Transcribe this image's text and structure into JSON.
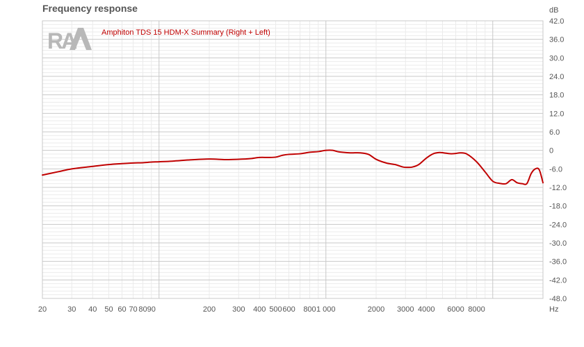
{
  "title": "Frequency response",
  "logo_text": "RA",
  "colors": {
    "series": "#c00000",
    "grid_major": "#c8c8c8",
    "grid_minor": "#ebebeb",
    "text": "#555555",
    "logo": "#b8b8b8"
  },
  "chart_data": {
    "type": "line",
    "title": "Frequency response",
    "xlabel": "Hz",
    "ylabel": "dB",
    "xscale": "log",
    "xlim": [
      20,
      20000
    ],
    "ylim": [
      -48,
      42
    ],
    "grid": true,
    "legend_position": "top-left",
    "x_tick_labels": [
      {
        "value": 20,
        "label": "20"
      },
      {
        "value": 30,
        "label": "30"
      },
      {
        "value": 40,
        "label": "40"
      },
      {
        "value": 50,
        "label": "50"
      },
      {
        "value": 60,
        "label": "60"
      },
      {
        "value": 70,
        "label": "70"
      },
      {
        "value": 80,
        "label": "80"
      },
      {
        "value": 90,
        "label": "90"
      },
      {
        "value": 200,
        "label": "200"
      },
      {
        "value": 300,
        "label": "300"
      },
      {
        "value": 400,
        "label": "400"
      },
      {
        "value": 500,
        "label": "500"
      },
      {
        "value": 600,
        "label": "600"
      },
      {
        "value": 800,
        "label": "800"
      },
      {
        "value": 1000,
        "label": "1 000"
      },
      {
        "value": 2000,
        "label": "2000"
      },
      {
        "value": 3000,
        "label": "3000"
      },
      {
        "value": 4000,
        "label": "4000"
      },
      {
        "value": 6000,
        "label": "6000"
      },
      {
        "value": 8000,
        "label": "8000"
      }
    ],
    "y_tick_labels": [
      {
        "value": 42,
        "label": "42.0"
      },
      {
        "value": 36,
        "label": "36.0"
      },
      {
        "value": 30,
        "label": "30.0"
      },
      {
        "value": 24,
        "label": "24.0"
      },
      {
        "value": 18,
        "label": "18.0"
      },
      {
        "value": 12,
        "label": "12.0"
      },
      {
        "value": 6,
        "label": "6.0"
      },
      {
        "value": 0,
        "label": "0"
      },
      {
        "value": -6,
        "label": "-6.0"
      },
      {
        "value": -12,
        "label": "-12.0"
      },
      {
        "value": -18,
        "label": "-18.0"
      },
      {
        "value": -24,
        "label": "-24.0"
      },
      {
        "value": -30,
        "label": "-30.0"
      },
      {
        "value": -36,
        "label": "-36.0"
      },
      {
        "value": -42,
        "label": "-42.0"
      },
      {
        "value": -48,
        "label": "-48.0"
      }
    ],
    "series": [
      {
        "name": "Amphiton TDS 15 HDM-X Summary (Right + Left)",
        "color": "#c00000",
        "x": [
          20,
          25,
          30,
          40,
          50,
          60,
          70,
          80,
          90,
          100,
          120,
          150,
          200,
          250,
          300,
          350,
          400,
          450,
          500,
          550,
          600,
          700,
          800,
          900,
          1000,
          1100,
          1200,
          1400,
          1600,
          1800,
          2000,
          2300,
          2600,
          2900,
          3100,
          3300,
          3600,
          4000,
          4400,
          4800,
          5200,
          5600,
          6000,
          6400,
          7000,
          8000,
          9000,
          10000,
          11000,
          12000,
          13000,
          14000,
          15000,
          16000,
          17000,
          18000,
          19000,
          20000
        ],
        "values": [
          -8.0,
          -6.9,
          -6.0,
          -5.2,
          -4.6,
          -4.3,
          -4.1,
          -4.0,
          -3.8,
          -3.7,
          -3.5,
          -3.1,
          -2.8,
          -3.0,
          -2.9,
          -2.7,
          -2.3,
          -2.3,
          -2.2,
          -1.6,
          -1.3,
          -1.1,
          -0.6,
          -0.4,
          0.0,
          0.0,
          -0.5,
          -0.8,
          -0.8,
          -1.3,
          -2.9,
          -4.1,
          -4.6,
          -5.4,
          -5.5,
          -5.4,
          -4.6,
          -2.5,
          -1.1,
          -0.7,
          -0.9,
          -1.1,
          -1.0,
          -0.8,
          -1.2,
          -3.7,
          -7.0,
          -10.0,
          -10.7,
          -10.8,
          -9.5,
          -10.5,
          -10.8,
          -10.8,
          -7.5,
          -6.0,
          -6.3,
          -10.5
        ]
      }
    ]
  }
}
